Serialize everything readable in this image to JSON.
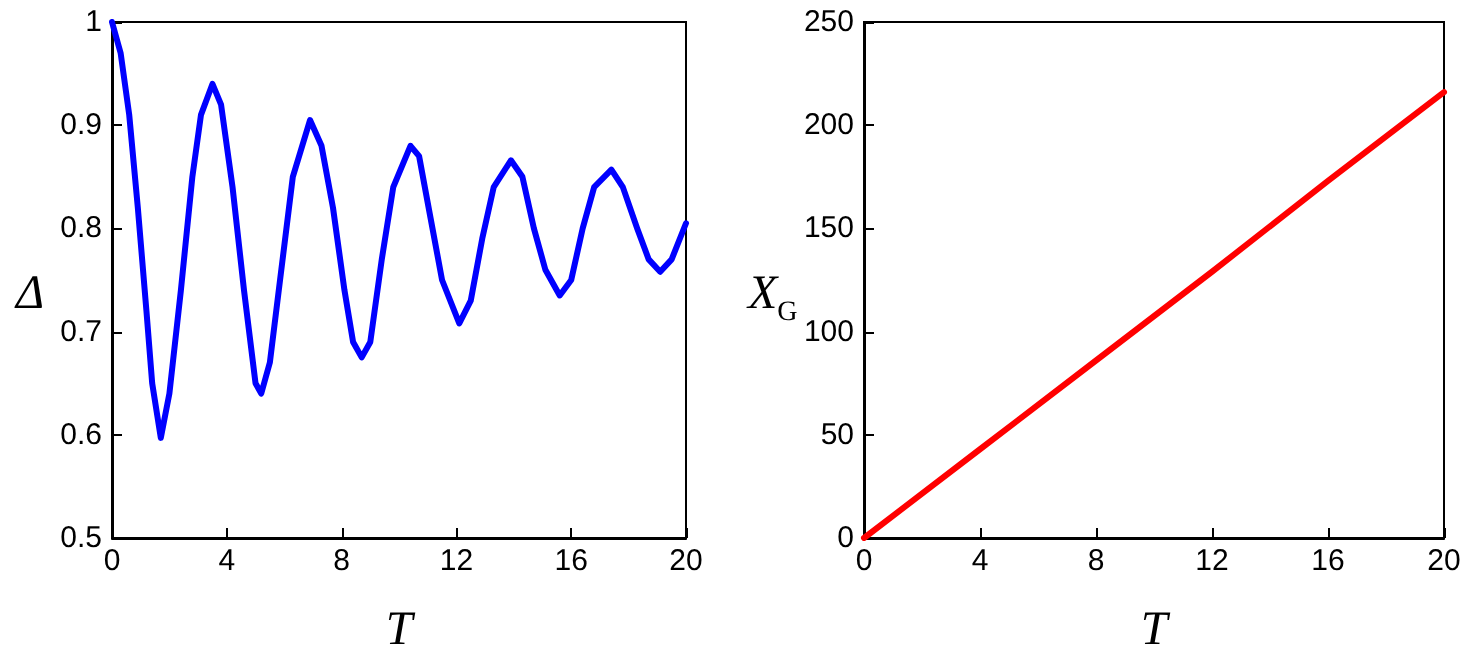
{
  "chart_data": [
    {
      "type": "line",
      "xlabel": "T",
      "ylabel": "Δ",
      "xlim": [
        0,
        20
      ],
      "ylim": [
        0.5,
        1
      ],
      "xticks": [
        0,
        4,
        8,
        12,
        16,
        20
      ],
      "yticks": [
        0.5,
        0.6,
        0.7,
        0.8,
        0.9,
        1
      ],
      "x": [
        0,
        0.3,
        0.6,
        0.9,
        1.2,
        1.4,
        1.7,
        2.0,
        2.4,
        2.8,
        3.1,
        3.5,
        3.8,
        4.2,
        4.6,
        5.0,
        5.2,
        5.5,
        5.9,
        6.3,
        6.9,
        7.3,
        7.7,
        8.1,
        8.4,
        8.7,
        9.0,
        9.4,
        9.8,
        10.4,
        10.7,
        11.1,
        11.5,
        12.1,
        12.5,
        12.9,
        13.3,
        13.9,
        14.3,
        14.7,
        15.1,
        15.6,
        16.0,
        16.4,
        16.8,
        17.4,
        17.8,
        18.3,
        18.7,
        19.1,
        19.5,
        20
      ],
      "series": [
        {
          "color": "#0000ff",
          "values": [
            1,
            0.97,
            0.91,
            0.82,
            0.72,
            0.65,
            0.597,
            0.64,
            0.74,
            0.85,
            0.91,
            0.94,
            0.92,
            0.84,
            0.74,
            0.65,
            0.64,
            0.67,
            0.76,
            0.85,
            0.905,
            0.88,
            0.82,
            0.74,
            0.69,
            0.675,
            0.69,
            0.77,
            0.84,
            0.88,
            0.87,
            0.81,
            0.75,
            0.708,
            0.73,
            0.79,
            0.84,
            0.866,
            0.85,
            0.8,
            0.76,
            0.735,
            0.75,
            0.8,
            0.84,
            0.857,
            0.84,
            0.8,
            0.77,
            0.758,
            0.77,
            0.805
          ]
        }
      ]
    },
    {
      "type": "line",
      "xlabel": "T",
      "ylabel": "X$_{G}$",
      "xlim": [
        0,
        20
      ],
      "ylim": [
        0,
        250
      ],
      "xticks": [
        0,
        4,
        8,
        12,
        16,
        20
      ],
      "yticks": [
        0,
        50,
        100,
        150,
        200,
        250
      ],
      "x": [
        0,
        4,
        8,
        12,
        16,
        20
      ],
      "series": [
        {
          "color": "#ff0000",
          "values": [
            0,
            43,
            86,
            129,
            173,
            216
          ]
        }
      ]
    }
  ]
}
